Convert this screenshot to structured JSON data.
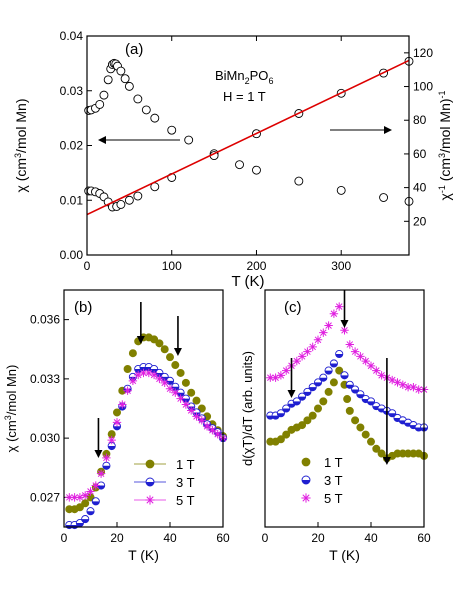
{
  "chart_data": [
    {
      "panel": "(a)",
      "type": "scatter",
      "annotation_compound": "BiMn",
      "annotation_sub1": "2",
      "annotation_mid": "PO",
      "annotation_sub2": "6",
      "annotation_field": "H = 1 T",
      "xlabel": "T (K)",
      "ylabel_left_pre": "χ (cm",
      "ylabel_left_sup": "3",
      "ylabel_left_post": "/mol Mn)",
      "ylabel_right_pre": "χ",
      "ylabel_right_sup1": "-1",
      "ylabel_right_mid": " (cm",
      "ylabel_right_sup2": "3",
      "ylabel_right_post": "/mol Mn)",
      "ylabel_right_sup3": "-1",
      "xlim": [
        0,
        380
      ],
      "ylim_left": [
        0.0,
        0.04
      ],
      "ylim_right": [
        0,
        130
      ],
      "xticks": [
        "0",
        "100",
        "200",
        "300"
      ],
      "xtick_values": [
        0,
        100,
        200,
        300
      ],
      "yticks_left": [
        "0.00",
        "0.01",
        "0.02",
        "0.03",
        "0.04"
      ],
      "ytick_left_values": [
        0.0,
        0.01,
        0.02,
        0.03,
        0.04
      ],
      "yticks_right": [
        "20",
        "40",
        "60",
        "80",
        "100",
        "120"
      ],
      "ytick_right_values": [
        20,
        40,
        60,
        80,
        100,
        120
      ],
      "series": [
        {
          "axis": "left",
          "marker": "open-circle",
          "color": "#000000",
          "x": [
            2,
            5,
            10,
            15,
            20,
            25,
            28,
            30,
            32,
            34,
            36,
            40,
            45,
            50,
            60,
            70,
            80,
            100,
            120,
            150,
            180,
            200,
            250,
            300,
            350,
            380
          ],
          "y": [
            0.0264,
            0.0265,
            0.0268,
            0.0275,
            0.0292,
            0.032,
            0.034,
            0.0348,
            0.035,
            0.0349,
            0.0345,
            0.0336,
            0.0322,
            0.0308,
            0.0285,
            0.0265,
            0.025,
            0.0228,
            0.021,
            0.0185,
            0.0165,
            0.0155,
            0.0135,
            0.0118,
            0.0105,
            0.0098
          ]
        },
        {
          "axis": "right",
          "marker": "open-circle",
          "color": "#000000",
          "x": [
            2,
            5,
            10,
            15,
            20,
            25,
            30,
            35,
            40,
            50,
            60,
            80,
            100,
            150,
            200,
            250,
            300,
            350,
            380
          ],
          "y": [
            38,
            38,
            37.5,
            36.5,
            34.5,
            31.5,
            28.5,
            28.8,
            30,
            32.5,
            35,
            40.5,
            46,
            59,
            72,
            84,
            96,
            108,
            115
          ]
        },
        {
          "axis": "right",
          "type": "fit-line",
          "color": "#dd0000",
          "x": [
            0,
            380
          ],
          "y": [
            24,
            115.5
          ]
        }
      ]
    },
    {
      "panel": "(b)",
      "type": "scatter",
      "xlabel": "T (K)",
      "ylabel_pre": "χ (cm",
      "ylabel_sup": "3",
      "ylabel_post": "/mol Mn)",
      "xlim": [
        0,
        60
      ],
      "ylim": [
        0.0255,
        0.0375
      ],
      "xticks": [
        "0",
        "20",
        "40",
        "60"
      ],
      "xtick_values": [
        0,
        20,
        40,
        60
      ],
      "yticks": [
        "0.027",
        "0.030",
        "0.033",
        "0.036"
      ],
      "ytick_values": [
        0.027,
        0.03,
        0.033,
        0.036
      ],
      "legend_placement": "bottom-right",
      "series": [
        {
          "name": "1 T",
          "marker": "filled-circle",
          "color": "#808000",
          "x": [
            2,
            4,
            6,
            8,
            10,
            12,
            14,
            16,
            18,
            20,
            22,
            24,
            26,
            28,
            30,
            32,
            34,
            36,
            38,
            40,
            42,
            44,
            46,
            48,
            50,
            52,
            54,
            56,
            58,
            60
          ],
          "y": [
            0.0264,
            0.0264,
            0.0265,
            0.0267,
            0.027,
            0.0275,
            0.0283,
            0.0292,
            0.0302,
            0.0313,
            0.0324,
            0.0335,
            0.0343,
            0.0349,
            0.0351,
            0.0351,
            0.035,
            0.0348,
            0.0345,
            0.0341,
            0.0337,
            0.0333,
            0.0328,
            0.0323,
            0.0319,
            0.0315,
            0.0311,
            0.0307,
            0.0304,
            0.0301
          ]
        },
        {
          "name": "3 T",
          "marker": "half-filled-circle",
          "color": "#1f1fd0",
          "x": [
            2,
            4,
            6,
            8,
            10,
            12,
            14,
            16,
            18,
            20,
            22,
            24,
            26,
            28,
            30,
            32,
            34,
            36,
            38,
            40,
            42,
            44,
            46,
            48,
            50,
            52,
            54,
            56,
            58,
            60
          ],
          "y": [
            0.0256,
            0.0256,
            0.0257,
            0.0259,
            0.0263,
            0.0268,
            0.0276,
            0.0286,
            0.0296,
            0.0306,
            0.0316,
            0.0325,
            0.0331,
            0.0335,
            0.0336,
            0.0336,
            0.0335,
            0.0333,
            0.0331,
            0.0329,
            0.0326,
            0.0323,
            0.032,
            0.0316,
            0.0313,
            0.031,
            0.0307,
            0.0305,
            0.0303,
            0.03
          ]
        },
        {
          "name": "5 T",
          "marker": "star",
          "color": "#e020e0",
          "x": [
            2,
            4,
            6,
            8,
            10,
            12,
            14,
            16,
            18,
            20,
            22,
            24,
            26,
            28,
            30,
            32,
            34,
            36,
            38,
            40,
            42,
            44,
            46,
            48,
            50,
            52,
            54,
            56,
            58,
            60
          ],
          "y": [
            0.027,
            0.027,
            0.027,
            0.0271,
            0.0273,
            0.0276,
            0.0282,
            0.029,
            0.0299,
            0.0308,
            0.0317,
            0.0324,
            0.0329,
            0.0332,
            0.0333,
            0.0333,
            0.0332,
            0.033,
            0.0328,
            0.0325,
            0.0323,
            0.032,
            0.0317,
            0.0314,
            0.0311,
            0.0309,
            0.0306,
            0.0304,
            0.0302,
            0.03
          ]
        }
      ],
      "arrows_x": [
        13,
        29,
        43
      ]
    },
    {
      "panel": "(c)",
      "type": "scatter",
      "xlabel": "T (K)",
      "ylabel": "d(χT)/dT (arb. units)",
      "xlim": [
        0,
        60
      ],
      "ylim": [
        0,
        1
      ],
      "xticks": [
        "0",
        "20",
        "40",
        "60"
      ],
      "xtick_values": [
        0,
        20,
        40,
        60
      ],
      "legend_placement": "bottom-left",
      "series": [
        {
          "name": "1 T",
          "marker": "filled-circle",
          "color": "#808000",
          "x": [
            2,
            4,
            6,
            8,
            10,
            12,
            14,
            16,
            18,
            20,
            22,
            24,
            26,
            28,
            30,
            31,
            32,
            34,
            36,
            38,
            40,
            42,
            44,
            46,
            48,
            50,
            52,
            54,
            56,
            58,
            60
          ],
          "y": [
            0.36,
            0.36,
            0.37,
            0.39,
            0.41,
            0.42,
            0.43,
            0.45,
            0.47,
            0.5,
            0.53,
            0.57,
            0.61,
            0.66,
            0.6,
            0.54,
            0.49,
            0.45,
            0.42,
            0.39,
            0.36,
            0.33,
            0.31,
            0.29,
            0.3,
            0.31,
            0.31,
            0.31,
            0.31,
            0.31,
            0.3
          ]
        },
        {
          "name": "3 T",
          "marker": "half-filled-circle",
          "color": "#1f1fd0",
          "x": [
            2,
            4,
            6,
            8,
            10,
            12,
            14,
            16,
            18,
            20,
            22,
            24,
            26,
            28,
            30,
            32,
            34,
            36,
            38,
            40,
            42,
            44,
            46,
            48,
            50,
            52,
            54,
            56,
            58,
            60
          ],
          "y": [
            0.47,
            0.47,
            0.48,
            0.5,
            0.52,
            0.53,
            0.55,
            0.57,
            0.59,
            0.61,
            0.63,
            0.66,
            0.69,
            0.73,
            0.64,
            0.6,
            0.58,
            0.56,
            0.54,
            0.53,
            0.51,
            0.5,
            0.49,
            0.48,
            0.46,
            0.45,
            0.44,
            0.43,
            0.42,
            0.42
          ]
        },
        {
          "name": "5 T",
          "marker": "star",
          "color": "#e020e0",
          "x": [
            2,
            4,
            6,
            8,
            10,
            12,
            14,
            16,
            18,
            20,
            22,
            24,
            26,
            28,
            30,
            32,
            34,
            36,
            38,
            40,
            42,
            44,
            46,
            48,
            50,
            52,
            54,
            56,
            58,
            60
          ],
          "y": [
            0.63,
            0.63,
            0.64,
            0.66,
            0.68,
            0.7,
            0.72,
            0.74,
            0.76,
            0.79,
            0.82,
            0.85,
            0.9,
            0.93,
            0.83,
            0.77,
            0.74,
            0.72,
            0.7,
            0.68,
            0.66,
            0.64,
            0.63,
            0.62,
            0.61,
            0.6,
            0.59,
            0.59,
            0.58,
            0.58
          ]
        }
      ],
      "arrows_x": [
        10,
        30,
        46
      ]
    }
  ]
}
